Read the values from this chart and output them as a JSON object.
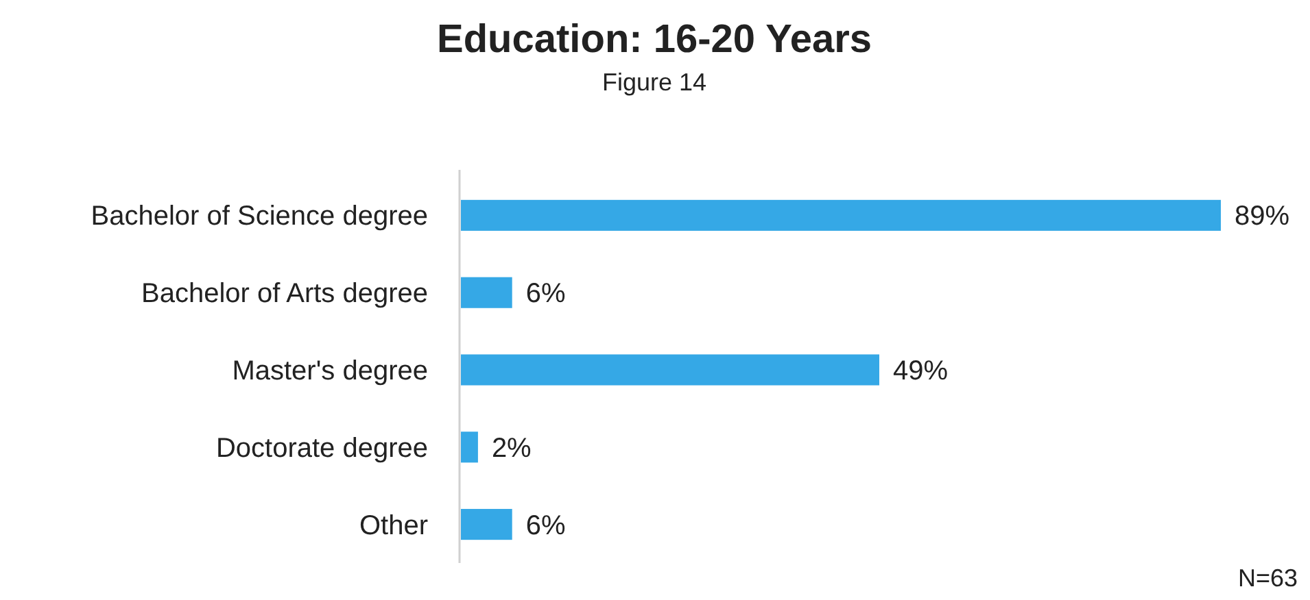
{
  "chart_data": {
    "type": "bar",
    "orientation": "horizontal",
    "title": "Education: 16-20 Years",
    "subtitle": "Figure 14",
    "categories": [
      "Bachelor of Science degree",
      "Bachelor of Arts degree",
      "Master's degree",
      "Doctorate degree",
      "Other"
    ],
    "values": [
      89,
      6,
      49,
      2,
      6
    ],
    "value_labels": [
      "89%",
      "6%",
      "49%",
      "2%",
      "6%"
    ],
    "color": "#35a8e6",
    "annotations": [
      "N=63"
    ]
  }
}
